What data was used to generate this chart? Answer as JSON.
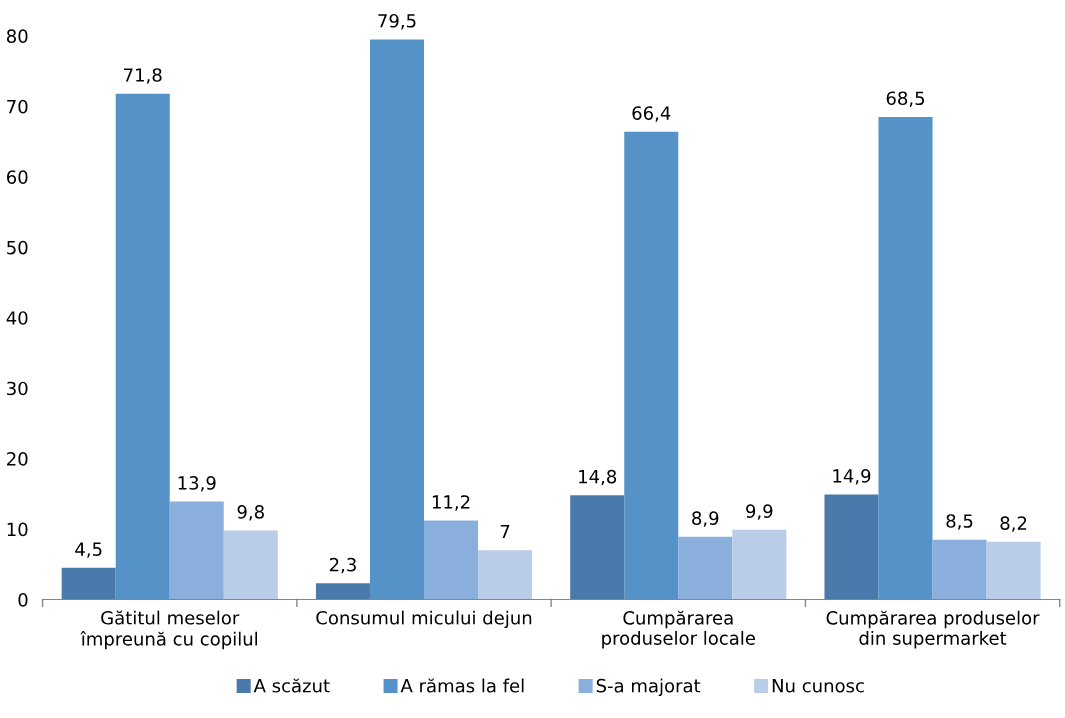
{
  "chart_data": {
    "type": "bar",
    "categories": [
      "Gătitul meselor\nîmpreună cu copilul",
      "Consumul micului dejun",
      "Cumpărarea\nproduselor locale",
      "Cumpărarea produselor\ndin supermarket"
    ],
    "series": [
      {
        "name": "A scăzut",
        "color": "#4a7aab",
        "values": [
          4.5,
          2.3,
          14.8,
          14.9
        ],
        "value_labels": [
          "4,5",
          "2,3",
          "14,8",
          "14,9"
        ]
      },
      {
        "name": "A rămas la fel",
        "color": "#5592c8",
        "values": [
          71.8,
          79.5,
          66.4,
          68.5
        ],
        "value_labels": [
          "71,8",
          "79,5",
          "66,4",
          "68,5"
        ]
      },
      {
        "name": "S-a majorat",
        "color": "#8aafdc",
        "values": [
          13.9,
          11.2,
          8.9,
          8.5
        ],
        "value_labels": [
          "13,9",
          "11,2",
          "8,9",
          "8,5"
        ]
      },
      {
        "name": "Nu cunosc",
        "color": "#b9cde8",
        "values": [
          9.8,
          7,
          9.9,
          8.2
        ],
        "value_labels": [
          "9,8",
          "7",
          "9,9",
          "8,2"
        ]
      }
    ],
    "ylim": [
      0,
      80
    ],
    "yticks": [
      0,
      10,
      20,
      30,
      40,
      50,
      60,
      70,
      80
    ],
    "grid": false,
    "legend": "bottom"
  }
}
